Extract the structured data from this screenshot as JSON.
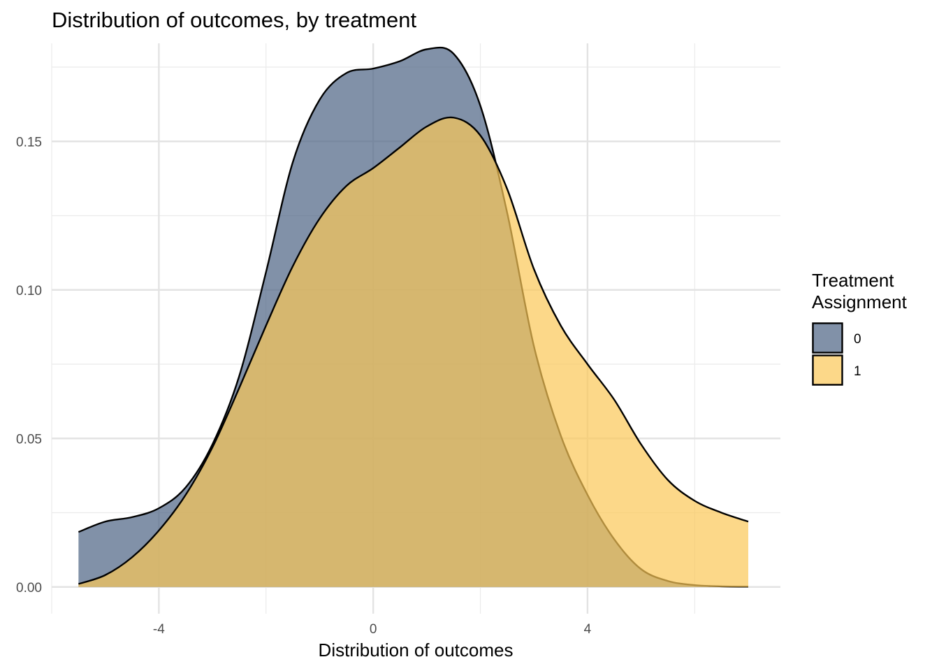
{
  "chart_data": {
    "type": "area",
    "subtype": "density",
    "title": "Distribution of outcomes, by treatment",
    "xlabel": "Distribution of outcomes",
    "ylabel": "",
    "xlim": [
      -6.0,
      7.6
    ],
    "ylim": [
      -0.009,
      0.183
    ],
    "x_ticks": [
      {
        "value": -4,
        "label": "-4"
      },
      {
        "value": 0,
        "label": "0"
      },
      {
        "value": 4,
        "label": "4"
      }
    ],
    "x_minor_ticks": [
      -6,
      -2,
      2,
      6
    ],
    "y_ticks": [
      {
        "value": 0.0,
        "label": "0.00"
      },
      {
        "value": 0.05,
        "label": "0.05"
      },
      {
        "value": 0.1,
        "label": "0.10"
      },
      {
        "value": 0.15,
        "label": "0.15"
      }
    ],
    "y_minor_ticks": [
      0.025,
      0.075,
      0.125,
      0.175
    ],
    "grid": true,
    "legend": {
      "title_lines": [
        "Treatment",
        "Assignment"
      ],
      "position": "right"
    },
    "series": [
      {
        "name": "0",
        "label": "0",
        "color": "#4b6283",
        "opacity": 0.7,
        "x": [
          -5.5,
          -5.0,
          -4.5,
          -4.0,
          -3.5,
          -3.0,
          -2.5,
          -2.0,
          -1.5,
          -1.0,
          -0.5,
          0.0,
          0.5,
          1.0,
          1.5,
          2.0,
          2.5,
          3.0,
          3.5,
          4.0,
          4.5,
          5.0,
          5.5,
          6.0,
          6.5,
          7.0
        ],
        "values": [
          0.0185,
          0.022,
          0.0235,
          0.0265,
          0.0335,
          0.048,
          0.071,
          0.106,
          0.143,
          0.164,
          0.173,
          0.1745,
          0.177,
          0.181,
          0.1795,
          0.162,
          0.126,
          0.081,
          0.051,
          0.031,
          0.016,
          0.006,
          0.002,
          0.0006,
          0.0002,
          0.0001
        ]
      },
      {
        "name": "1",
        "label": "1",
        "color": "#fbc757",
        "opacity": 0.7,
        "x": [
          -5.5,
          -5.0,
          -4.5,
          -4.0,
          -3.5,
          -3.0,
          -2.5,
          -2.0,
          -1.5,
          -1.0,
          -0.5,
          0.0,
          0.5,
          1.0,
          1.5,
          2.0,
          2.5,
          3.0,
          3.5,
          4.0,
          4.5,
          5.0,
          5.5,
          6.0,
          6.5,
          7.0
        ],
        "values": [
          0.001,
          0.004,
          0.01,
          0.019,
          0.031,
          0.047,
          0.067,
          0.088,
          0.108,
          0.124,
          0.135,
          0.141,
          0.148,
          0.155,
          0.158,
          0.152,
          0.134,
          0.107,
          0.088,
          0.075,
          0.063,
          0.048,
          0.036,
          0.029,
          0.025,
          0.022
        ]
      }
    ]
  }
}
